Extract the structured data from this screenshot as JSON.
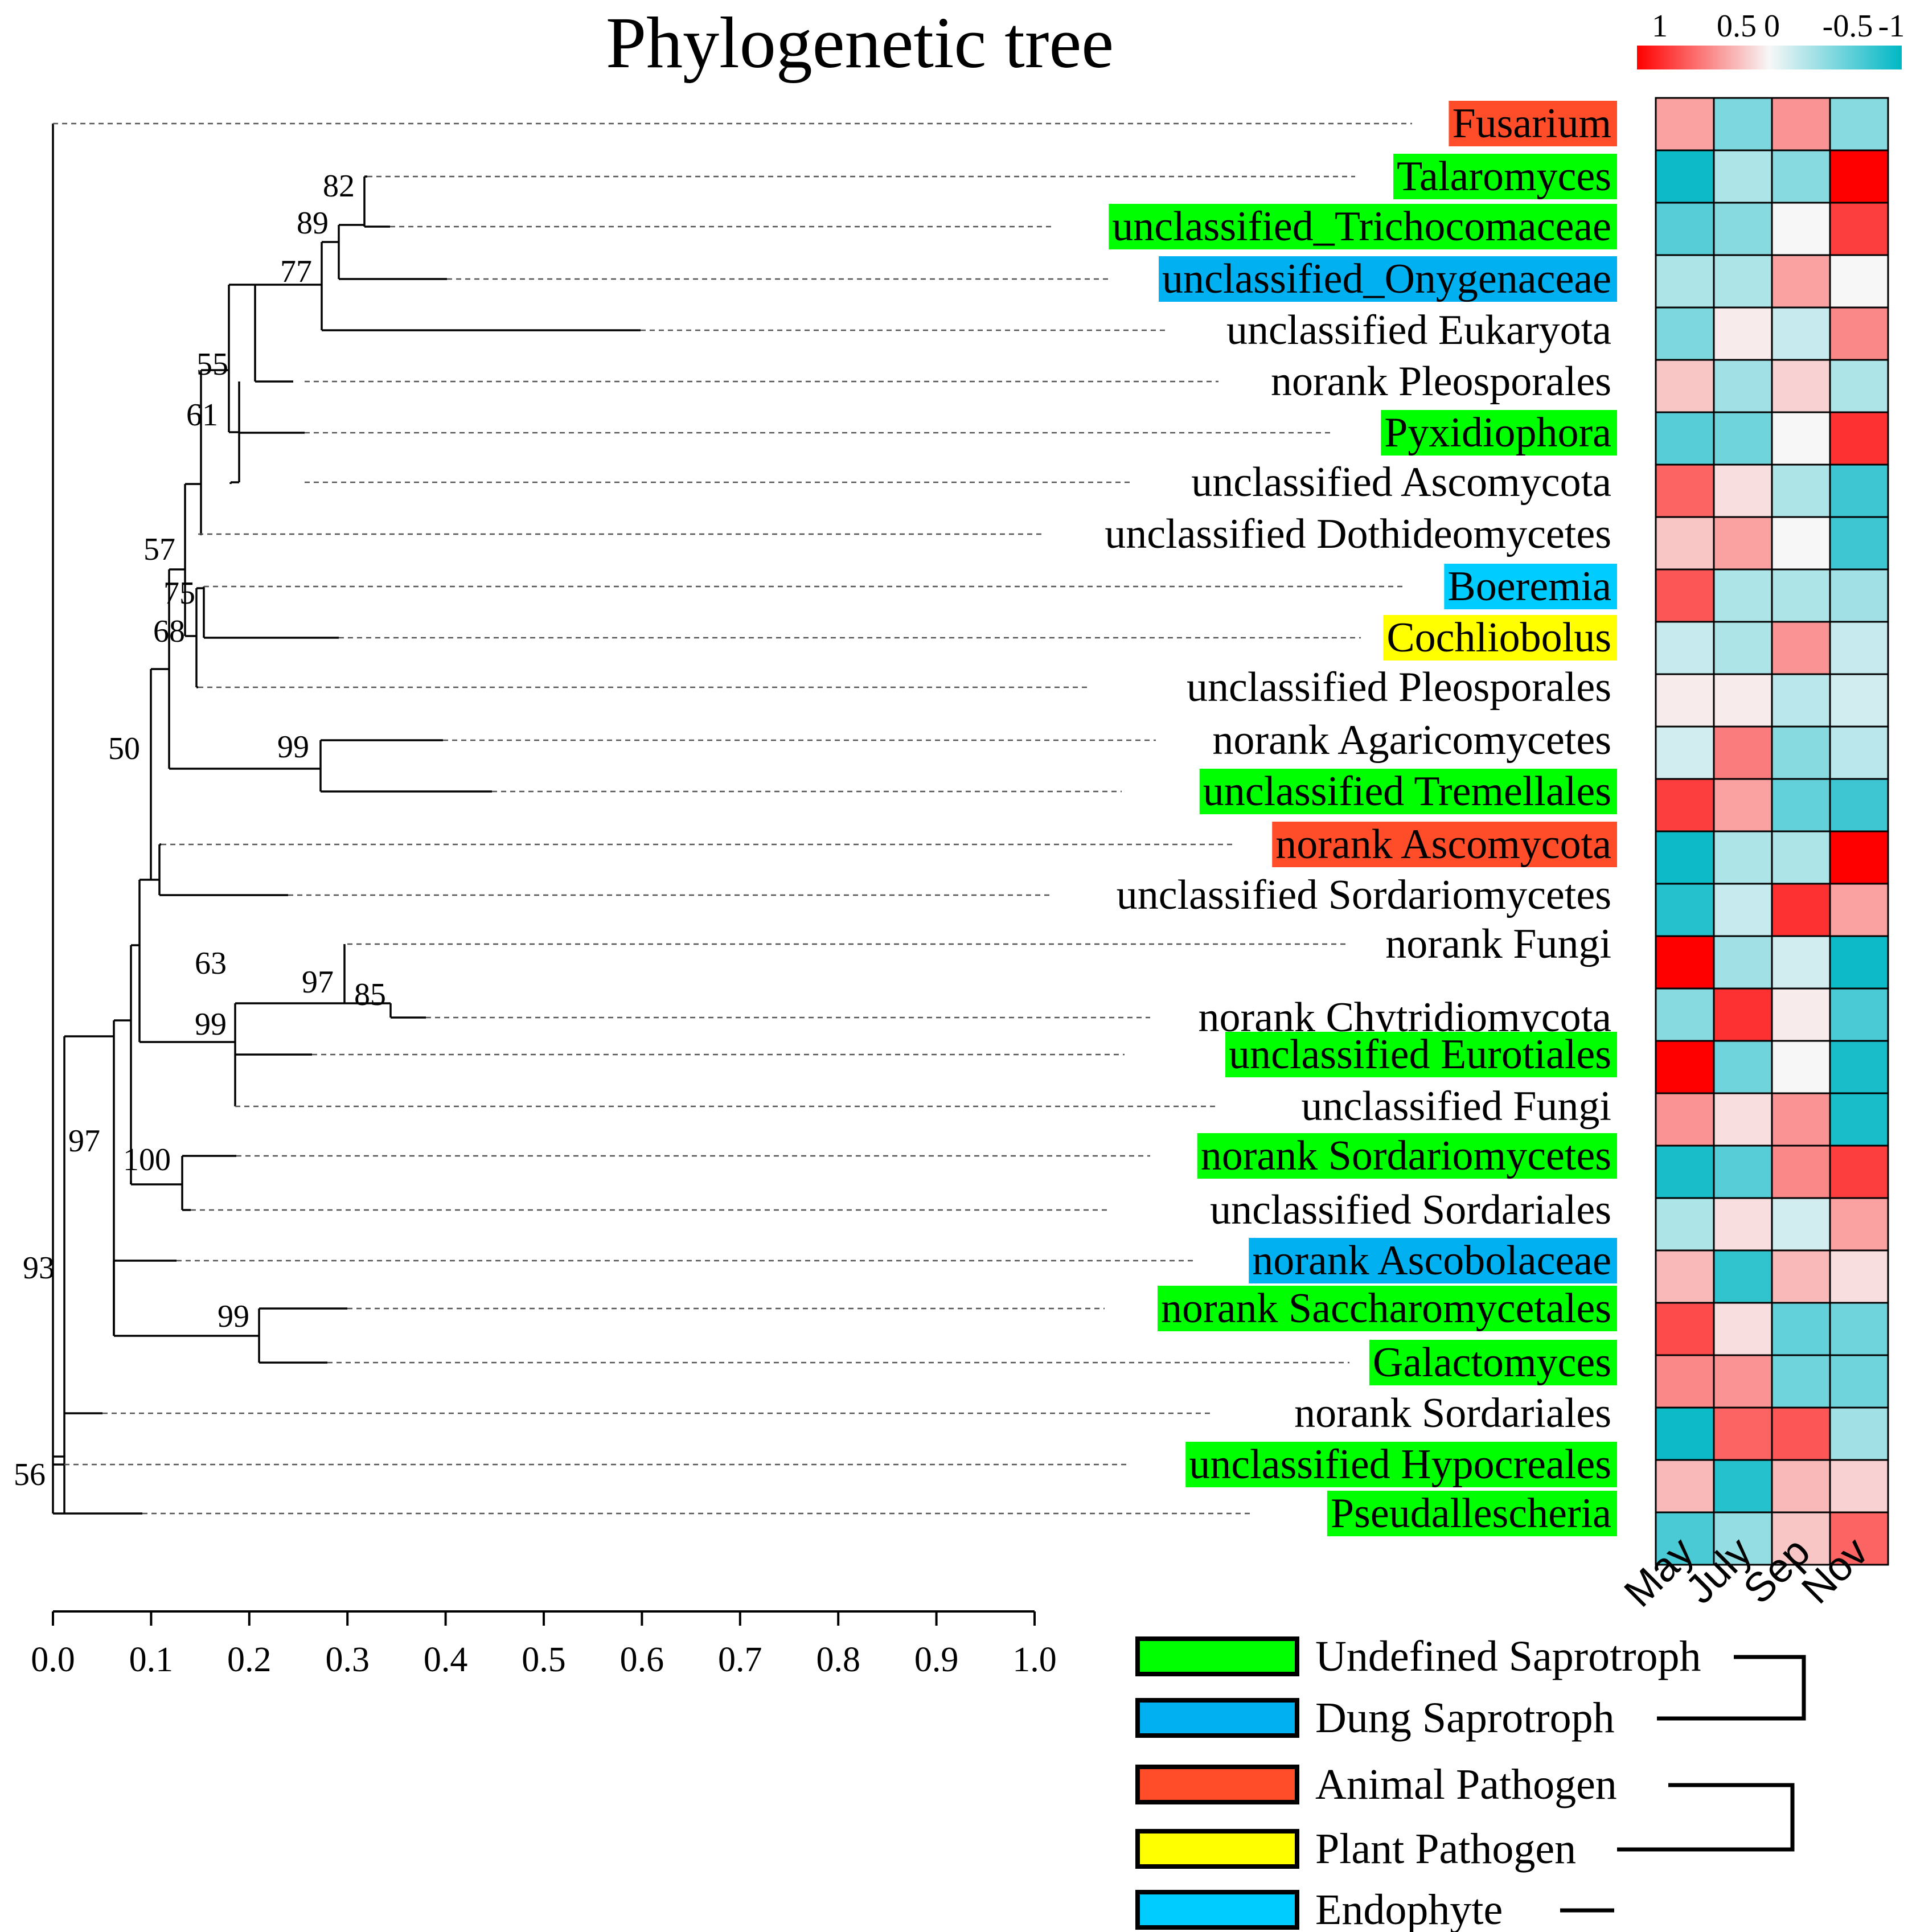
{
  "title": "Phylogenetic tree",
  "colorbar": {
    "labels": [
      "1",
      "0.5",
      "0",
      "-0.5",
      "-1"
    ],
    "low_color": "#ff0000",
    "mid_color": "#f7f7f7",
    "high_color": "#00b7c5"
  },
  "colors": {
    "undefined_saprotroph": "#00ff00",
    "dung_saprotroph": "#00b0f0",
    "animal_pathogen": "#ff4d29",
    "plant_pathogen": "#ffff00",
    "endophyte": "#00ccff"
  },
  "taxa": [
    {
      "name": "Fusarium",
      "group": "animal_pathogen"
    },
    {
      "name": "Talaromyces",
      "group": "undefined_saprotroph"
    },
    {
      "name": "unclassified_Trichocomaceae",
      "group": "undefined_saprotroph"
    },
    {
      "name": "unclassified_Onygenaceae",
      "group": "dung_saprotroph"
    },
    {
      "name": "unclassified Eukaryota",
      "group": null
    },
    {
      "name": "norank Pleosporales",
      "group": null
    },
    {
      "name": "Pyxidiophora",
      "group": "undefined_saprotroph"
    },
    {
      "name": "unclassified Ascomycota",
      "group": null
    },
    {
      "name": "unclassified Dothideomycetes",
      "group": null
    },
    {
      "name": "Boeremia",
      "group": "endophyte"
    },
    {
      "name": "Cochliobolus",
      "group": "plant_pathogen"
    },
    {
      "name": "unclassified Pleosporales",
      "group": null
    },
    {
      "name": "norank Agaricomycetes",
      "group": null
    },
    {
      "name": "unclassified Tremellales",
      "group": "undefined_saprotroph"
    },
    {
      "name": "norank Ascomycota",
      "group": "animal_pathogen"
    },
    {
      "name": "unclassified Sordariomycetes",
      "group": null
    },
    {
      "name": "norank Fungi",
      "group": null
    },
    {
      "name": "norank Chytridiomycota",
      "group": null
    },
    {
      "name": "unclassified Eurotiales",
      "group": "undefined_saprotroph"
    },
    {
      "name": "unclassified Fungi",
      "group": null
    },
    {
      "name": "norank Sordariomycetes",
      "group": "undefined_saprotroph"
    },
    {
      "name": "unclassified Sordariales",
      "group": null
    },
    {
      "name": "norank Ascobolaceae",
      "group": "dung_saprotroph"
    },
    {
      "name": "norank Saccharomycetales",
      "group": "undefined_saprotroph"
    },
    {
      "name": "Galactomyces",
      "group": "undefined_saprotroph"
    },
    {
      "name": "norank Sordariales",
      "group": null
    },
    {
      "name": "unclassified Hypocreales",
      "group": "undefined_saprotroph"
    },
    {
      "name": "Pseudallescheria",
      "group": "undefined_saprotroph"
    }
  ],
  "heatmap": {
    "columns": [
      "May",
      "July",
      "Sep",
      "Nov"
    ],
    "values": [
      [
        0.35,
        -0.5,
        0.4,
        -0.45
      ],
      [
        -0.95,
        -0.3,
        -0.45,
        1.0
      ],
      [
        -0.65,
        -0.45,
        0.0,
        0.75
      ],
      [
        -0.3,
        -0.3,
        0.35,
        0.0
      ],
      [
        -0.5,
        0.05,
        -0.2,
        0.45
      ],
      [
        0.2,
        -0.35,
        0.15,
        -0.3
      ],
      [
        -0.65,
        -0.55,
        0.0,
        0.8
      ],
      [
        0.6,
        0.1,
        -0.3,
        -0.75
      ],
      [
        0.2,
        0.35,
        0.0,
        -0.75
      ],
      [
        0.65,
        -0.3,
        -0.3,
        -0.35
      ],
      [
        -0.2,
        -0.3,
        0.4,
        -0.2
      ],
      [
        0.05,
        0.05,
        -0.25,
        -0.15
      ],
      [
        -0.15,
        0.5,
        -0.45,
        -0.25
      ],
      [
        0.75,
        0.35,
        -0.6,
        -0.75
      ],
      [
        -0.95,
        -0.3,
        -0.3,
        1.0
      ],
      [
        -0.85,
        -0.2,
        0.8,
        0.35
      ],
      [
        1.0,
        -0.35,
        -0.15,
        -0.95
      ],
      [
        -0.45,
        0.8,
        0.05,
        -0.7
      ],
      [
        1.0,
        -0.55,
        0.0,
        -0.9
      ],
      [
        0.4,
        0.1,
        0.4,
        -0.9
      ],
      [
        -0.9,
        -0.65,
        0.45,
        0.75
      ],
      [
        -0.3,
        0.1,
        -0.15,
        0.35
      ],
      [
        0.25,
        -0.8,
        0.25,
        0.1
      ],
      [
        0.7,
        0.1,
        -0.6,
        -0.55
      ],
      [
        0.45,
        0.4,
        -0.55,
        -0.55
      ],
      [
        -0.95,
        0.6,
        0.65,
        -0.35
      ],
      [
        0.25,
        -0.85,
        0.25,
        0.15
      ],
      [
        -0.7,
        -0.4,
        0.2,
        0.6
      ]
    ]
  },
  "bootstrap": {
    "b82": "82",
    "b89": "89",
    "b77": "77",
    "b55": "55",
    "b61": "61",
    "b57": "57",
    "b75": "75",
    "b68": "68",
    "b50": "50",
    "b99a": "99",
    "b63": "63",
    "b97a": "97",
    "b85": "85",
    "b99b": "99",
    "b97b": "97",
    "b100": "100",
    "b93": "93",
    "b99c": "99",
    "b56": "56"
  },
  "scale_axis": {
    "ticks": [
      "0.0",
      "0.1",
      "0.2",
      "0.3",
      "0.4",
      "0.5",
      "0.6",
      "0.7",
      "0.8",
      "0.9",
      "1.0"
    ]
  },
  "legend": [
    {
      "label": "Undefined Saprotroph",
      "color": "#00ff00"
    },
    {
      "label": "Dung Saprotroph",
      "color": "#00b0f0"
    },
    {
      "label": "Animal Pathogen",
      "color": "#ff4d29"
    },
    {
      "label": "Plant Pathogen",
      "color": "#ffff00"
    },
    {
      "label": "Endophyte",
      "color": "#00ccff"
    }
  ]
}
